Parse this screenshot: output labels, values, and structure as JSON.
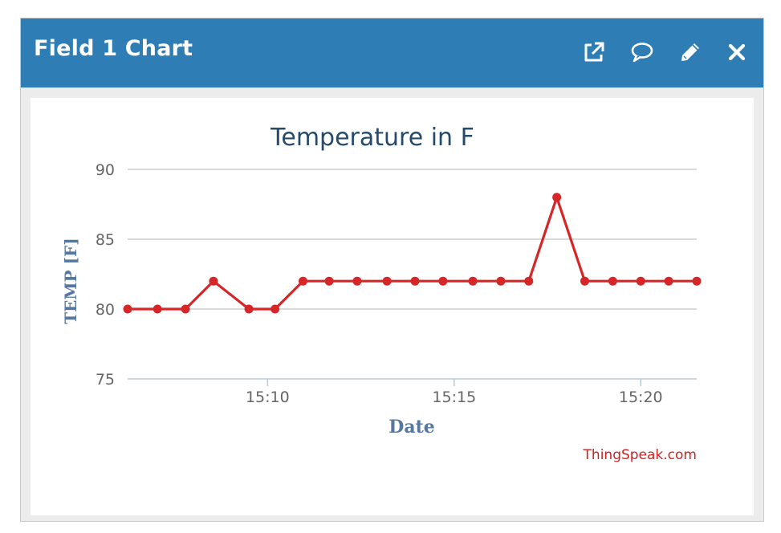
{
  "header": {
    "title": "Field 1 Chart",
    "icons": [
      "external-link-icon",
      "comment-icon",
      "pencil-icon",
      "close-icon"
    ]
  },
  "colors": {
    "header_bg": "#2e7db4",
    "series": "#d62728",
    "title_text": "#254a6b",
    "axis_label": "#5577a0",
    "credit": "#cc2222"
  },
  "chart_data": {
    "type": "line",
    "title": "Temperature in F",
    "xlabel": "Date",
    "ylabel": "TEMP [F]",
    "ylim": [
      75,
      90
    ],
    "yticks": [
      75,
      80,
      85,
      90
    ],
    "xlim": [
      "15:06:15",
      "15:21:30"
    ],
    "xticks": [
      "15:10",
      "15:15",
      "15:20"
    ],
    "grid": true,
    "legend": false,
    "credit": "ThingSpeak.com",
    "series": [
      {
        "x": [
          "15:06:15",
          "15:07:03",
          "15:07:48",
          "15:08:33",
          "15:09:30",
          "15:10:12",
          "15:10:57",
          "15:11:39",
          "15:12:24",
          "15:13:12",
          "15:13:57",
          "15:14:42",
          "15:15:30",
          "15:16:15",
          "15:17:00",
          "15:17:45",
          "15:18:30",
          "15:19:15",
          "15:20:00",
          "15:20:45",
          "15:21:30"
        ],
        "y": [
          80,
          80,
          80,
          82,
          80,
          80,
          82,
          82,
          82,
          82,
          82,
          82,
          82,
          82,
          82,
          88,
          82,
          82,
          82,
          82,
          82
        ]
      }
    ]
  }
}
